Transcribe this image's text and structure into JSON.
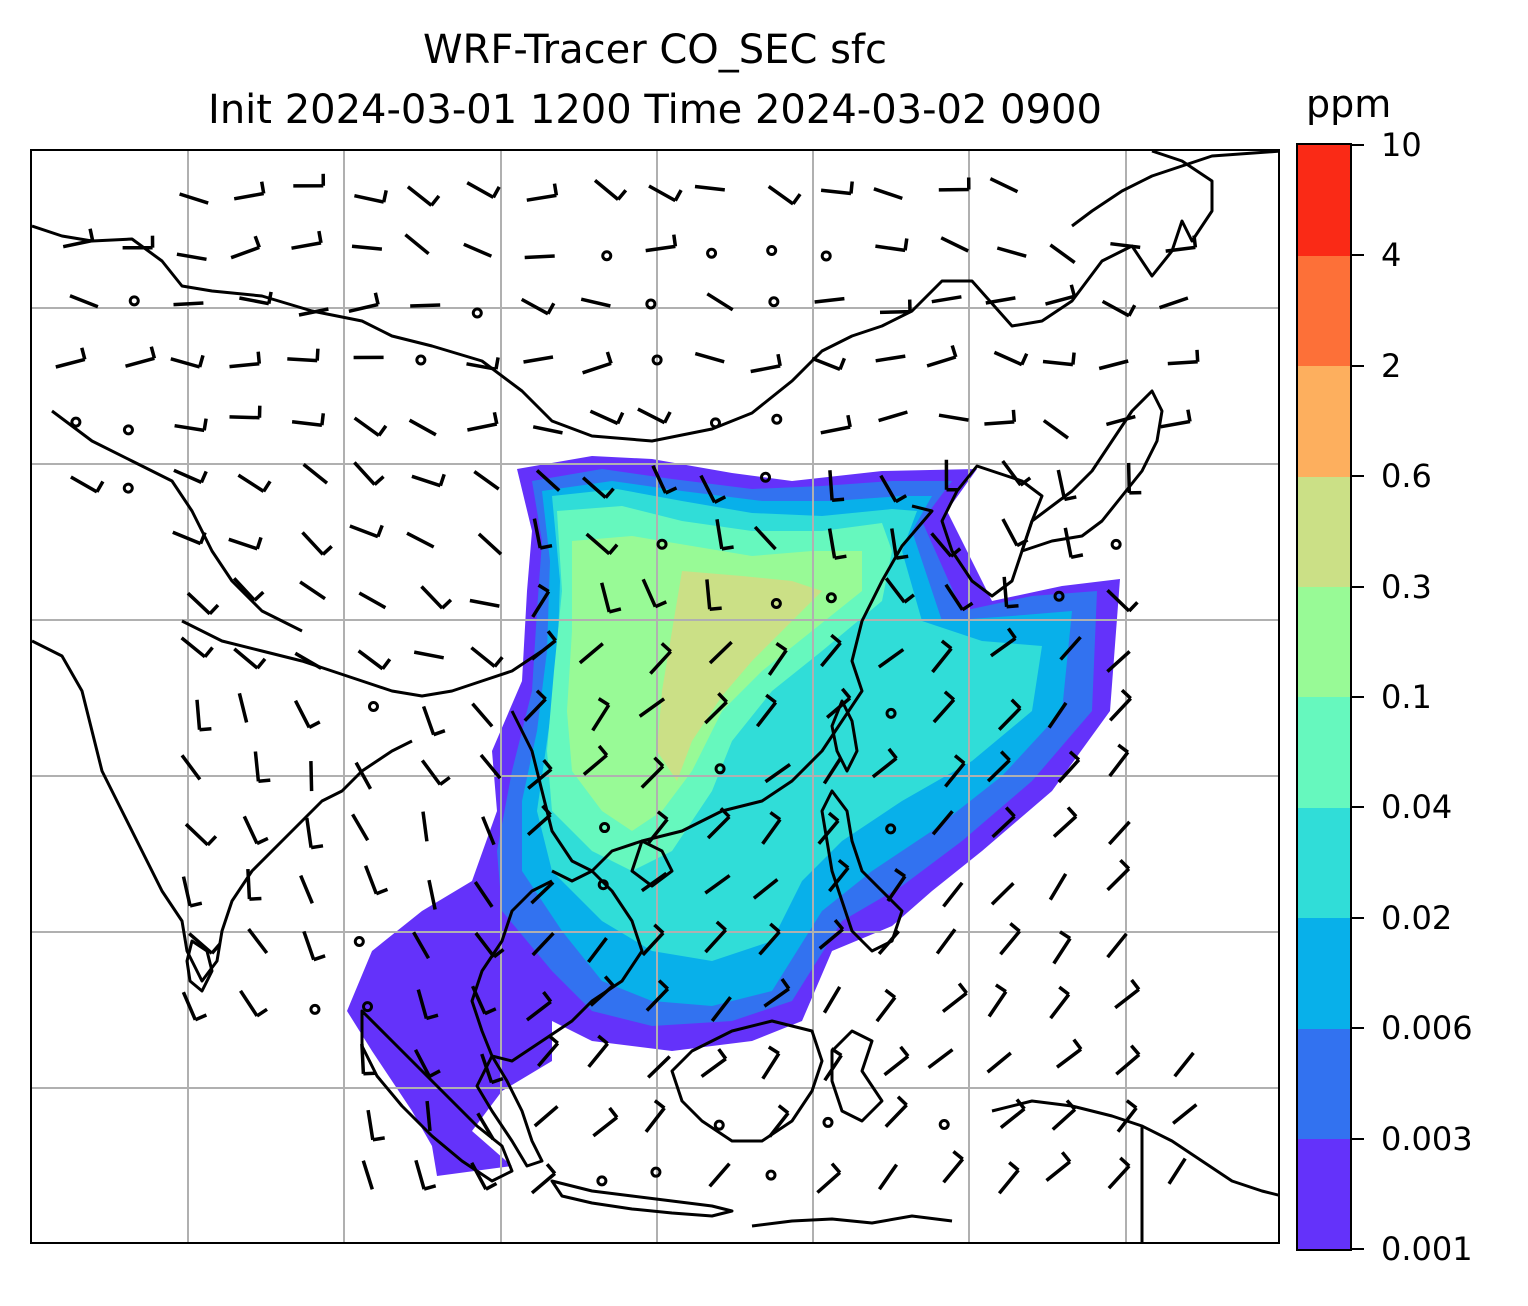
{
  "title": {
    "line1": "WRF-Tracer CO_SEC sfc",
    "line2": "Init 2024-03-01 1200 Time 2024-03-02 0900"
  },
  "colorbar": {
    "unit": "ppm",
    "levels": [
      "0.001",
      "0.003",
      "0.006",
      "0.02",
      "0.04",
      "0.1",
      "0.3",
      "0.6",
      "2",
      "4",
      "10"
    ],
    "colors": [
      "#6432fa",
      "#3272f0",
      "#08b0ea",
      "#30ddd8",
      "#66f8be",
      "#98fa96",
      "#cbe086",
      "#fdaf5e",
      "#fd7038",
      "#fa2a16"
    ]
  },
  "map": {
    "gridlines": true,
    "coastline_color": "#000000",
    "grid_color": "#b0b0b0"
  }
}
